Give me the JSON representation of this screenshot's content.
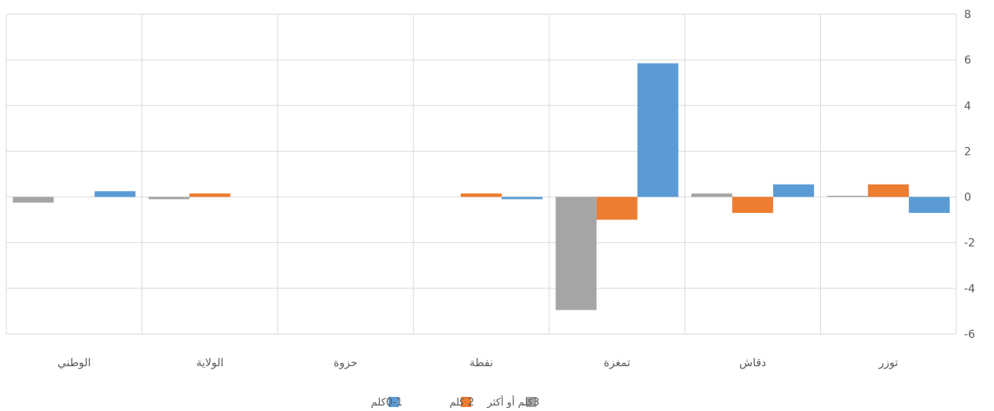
{
  "chart_data": {
    "type": "bar",
    "title": "",
    "xlabel": "",
    "ylabel": "",
    "categories": [
      "توزر",
      "دقاش",
      "تمغزة",
      "نفطة",
      "حزوة",
      "الولاية",
      "الوطني"
    ],
    "series": [
      {
        "name": "0-1كلم",
        "color": "#5B9BD5",
        "values": [
          -0.7,
          0.55,
          5.85,
          -0.1,
          0,
          0,
          0.25
        ]
      },
      {
        "name": "2 كلم",
        "color": "#ED7D31",
        "values": [
          0.55,
          -0.7,
          -1.0,
          0.15,
          0,
          0.15,
          0
        ]
      },
      {
        "name": "3كلم أو أكثر",
        "color": "#A5A5A5",
        "values": [
          0.05,
          0.15,
          -4.95,
          0,
          0,
          -0.1,
          -0.25
        ]
      }
    ],
    "ylim": [
      -6,
      8
    ],
    "yticks": [
      8,
      6,
      4,
      2,
      0,
      -2,
      -4,
      -6
    ],
    "y_axis_side": "right",
    "category_order": "right-to-left",
    "grid": true,
    "legend_position": "bottom"
  }
}
